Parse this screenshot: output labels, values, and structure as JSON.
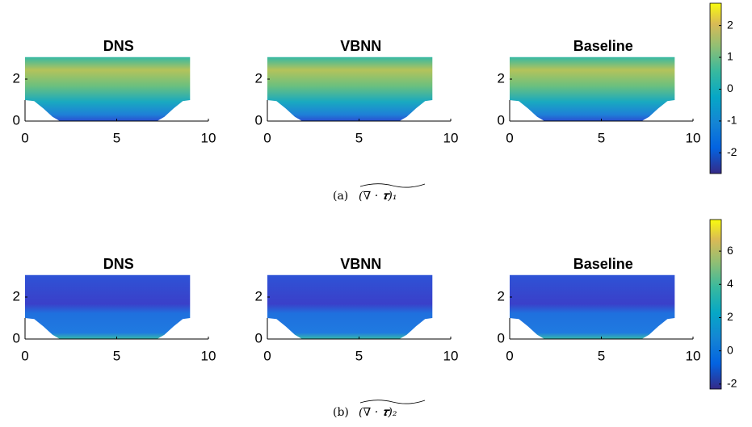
{
  "figures": [
    {
      "label": "(a)",
      "math": "(∇ · 𝝉)₁",
      "colorbar": {
        "lim": [
          -2.65,
          2.7
        ],
        "ticks": [
          -2,
          -1,
          0,
          1,
          2
        ]
      },
      "panels": [
        {
          "title": "DNS",
          "xlim": [
            0,
            10
          ],
          "xticks": [
            0,
            5,
            10
          ],
          "ylim": [
            0,
            3
          ],
          "yticks": [
            0,
            2
          ]
        },
        {
          "title": "VBNN",
          "xlim": [
            0,
            10
          ],
          "xticks": [
            0,
            5,
            10
          ],
          "ylim": [
            0,
            3
          ],
          "yticks": [
            0,
            2
          ]
        },
        {
          "title": "Baseline",
          "xlim": [
            0,
            10
          ],
          "xticks": [
            0,
            5,
            10
          ],
          "ylim": [
            0,
            3
          ],
          "yticks": [
            0,
            2
          ]
        }
      ]
    },
    {
      "label": "(b)",
      "math": "(∇ · 𝝉)₂",
      "colorbar": {
        "lim": [
          -2.3,
          7.9
        ],
        "ticks": [
          -2,
          0,
          2,
          4,
          6
        ]
      },
      "panels": [
        {
          "title": "DNS",
          "xlim": [
            0,
            10
          ],
          "xticks": [
            0,
            5,
            10
          ],
          "ylim": [
            0,
            3
          ],
          "yticks": [
            0,
            2
          ]
        },
        {
          "title": "VBNN",
          "xlim": [
            0,
            10
          ],
          "xticks": [
            0,
            5,
            10
          ],
          "ylim": [
            0,
            3
          ],
          "yticks": [
            0,
            2
          ]
        },
        {
          "title": "Baseline",
          "xlim": [
            0,
            10
          ],
          "xticks": [
            0,
            5,
            10
          ],
          "ylim": [
            0,
            3
          ],
          "yticks": [
            0,
            2
          ]
        }
      ]
    }
  ]
}
